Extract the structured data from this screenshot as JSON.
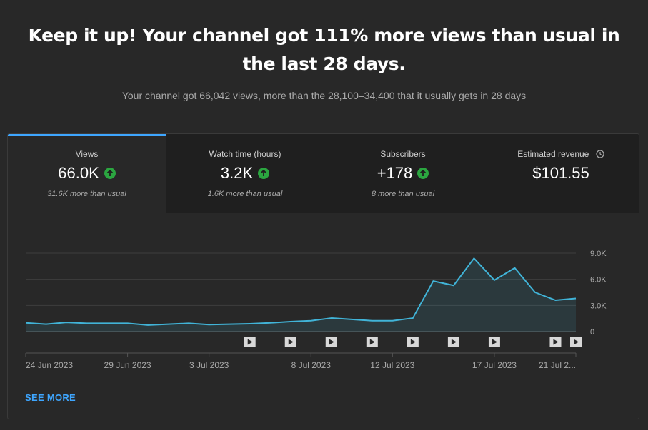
{
  "headline": {
    "line1": "Keep it up! Your channel got 111% more views than usual in",
    "line2": "the last 28 days."
  },
  "subtext": "Your channel got 66,042 views, more than the 28,100–34,400 that it usually gets in 28 days",
  "tabs": [
    {
      "label": "Views",
      "value": "66.0K",
      "note": "31.6K more than usual",
      "trend": "up",
      "active": true
    },
    {
      "label": "Watch time (hours)",
      "value": "3.2K",
      "note": "1.6K more than usual",
      "trend": "up",
      "active": false
    },
    {
      "label": "Subscribers",
      "value": "+178",
      "note": "8 more than usual",
      "trend": "up",
      "active": false
    },
    {
      "label": "Estimated revenue",
      "value": "$101.55",
      "note": "",
      "trend": "none",
      "active": false,
      "icon": "clock-icon"
    }
  ],
  "colors": {
    "accent": "#3ea6ff",
    "line": "#41b4d8",
    "up": "#2ba640"
  },
  "see_more": "SEE MORE",
  "chart_data": {
    "type": "area",
    "x_tick_labels": [
      "24 Jun 2023",
      "29 Jun 2023",
      "3 Jul 2023",
      "8 Jul 2023",
      "12 Jul 2023",
      "17 Jul 2023",
      "21 Jul 2..."
    ],
    "x": [
      "2023-06-24",
      "2023-06-25",
      "2023-06-26",
      "2023-06-27",
      "2023-06-28",
      "2023-06-29",
      "2023-06-30",
      "2023-07-01",
      "2023-07-02",
      "2023-07-03",
      "2023-07-04",
      "2023-07-05",
      "2023-07-06",
      "2023-07-07",
      "2023-07-08",
      "2023-07-09",
      "2023-07-10",
      "2023-07-11",
      "2023-07-12",
      "2023-07-13",
      "2023-07-14",
      "2023-07-15",
      "2023-07-16",
      "2023-07-17",
      "2023-07-18",
      "2023-07-19",
      "2023-07-20",
      "2023-07-21"
    ],
    "values": [
      1000,
      850,
      1050,
      950,
      950,
      950,
      750,
      850,
      950,
      800,
      850,
      900,
      1000,
      1150,
      1250,
      1550,
      1400,
      1250,
      1250,
      1550,
      5800,
      5300,
      8400,
      5900,
      7300,
      4500,
      3600,
      3800
    ],
    "y_ticks": [
      "9.0K",
      "6.0K",
      "3.0K",
      "0"
    ],
    "ylim": [
      0,
      9000
    ],
    "grid": true,
    "video_markers": [
      "2023-07-05",
      "2023-07-07",
      "2023-07-09",
      "2023-07-11",
      "2023-07-13",
      "2023-07-15",
      "2023-07-17",
      "2023-07-20",
      "2023-07-21"
    ]
  }
}
